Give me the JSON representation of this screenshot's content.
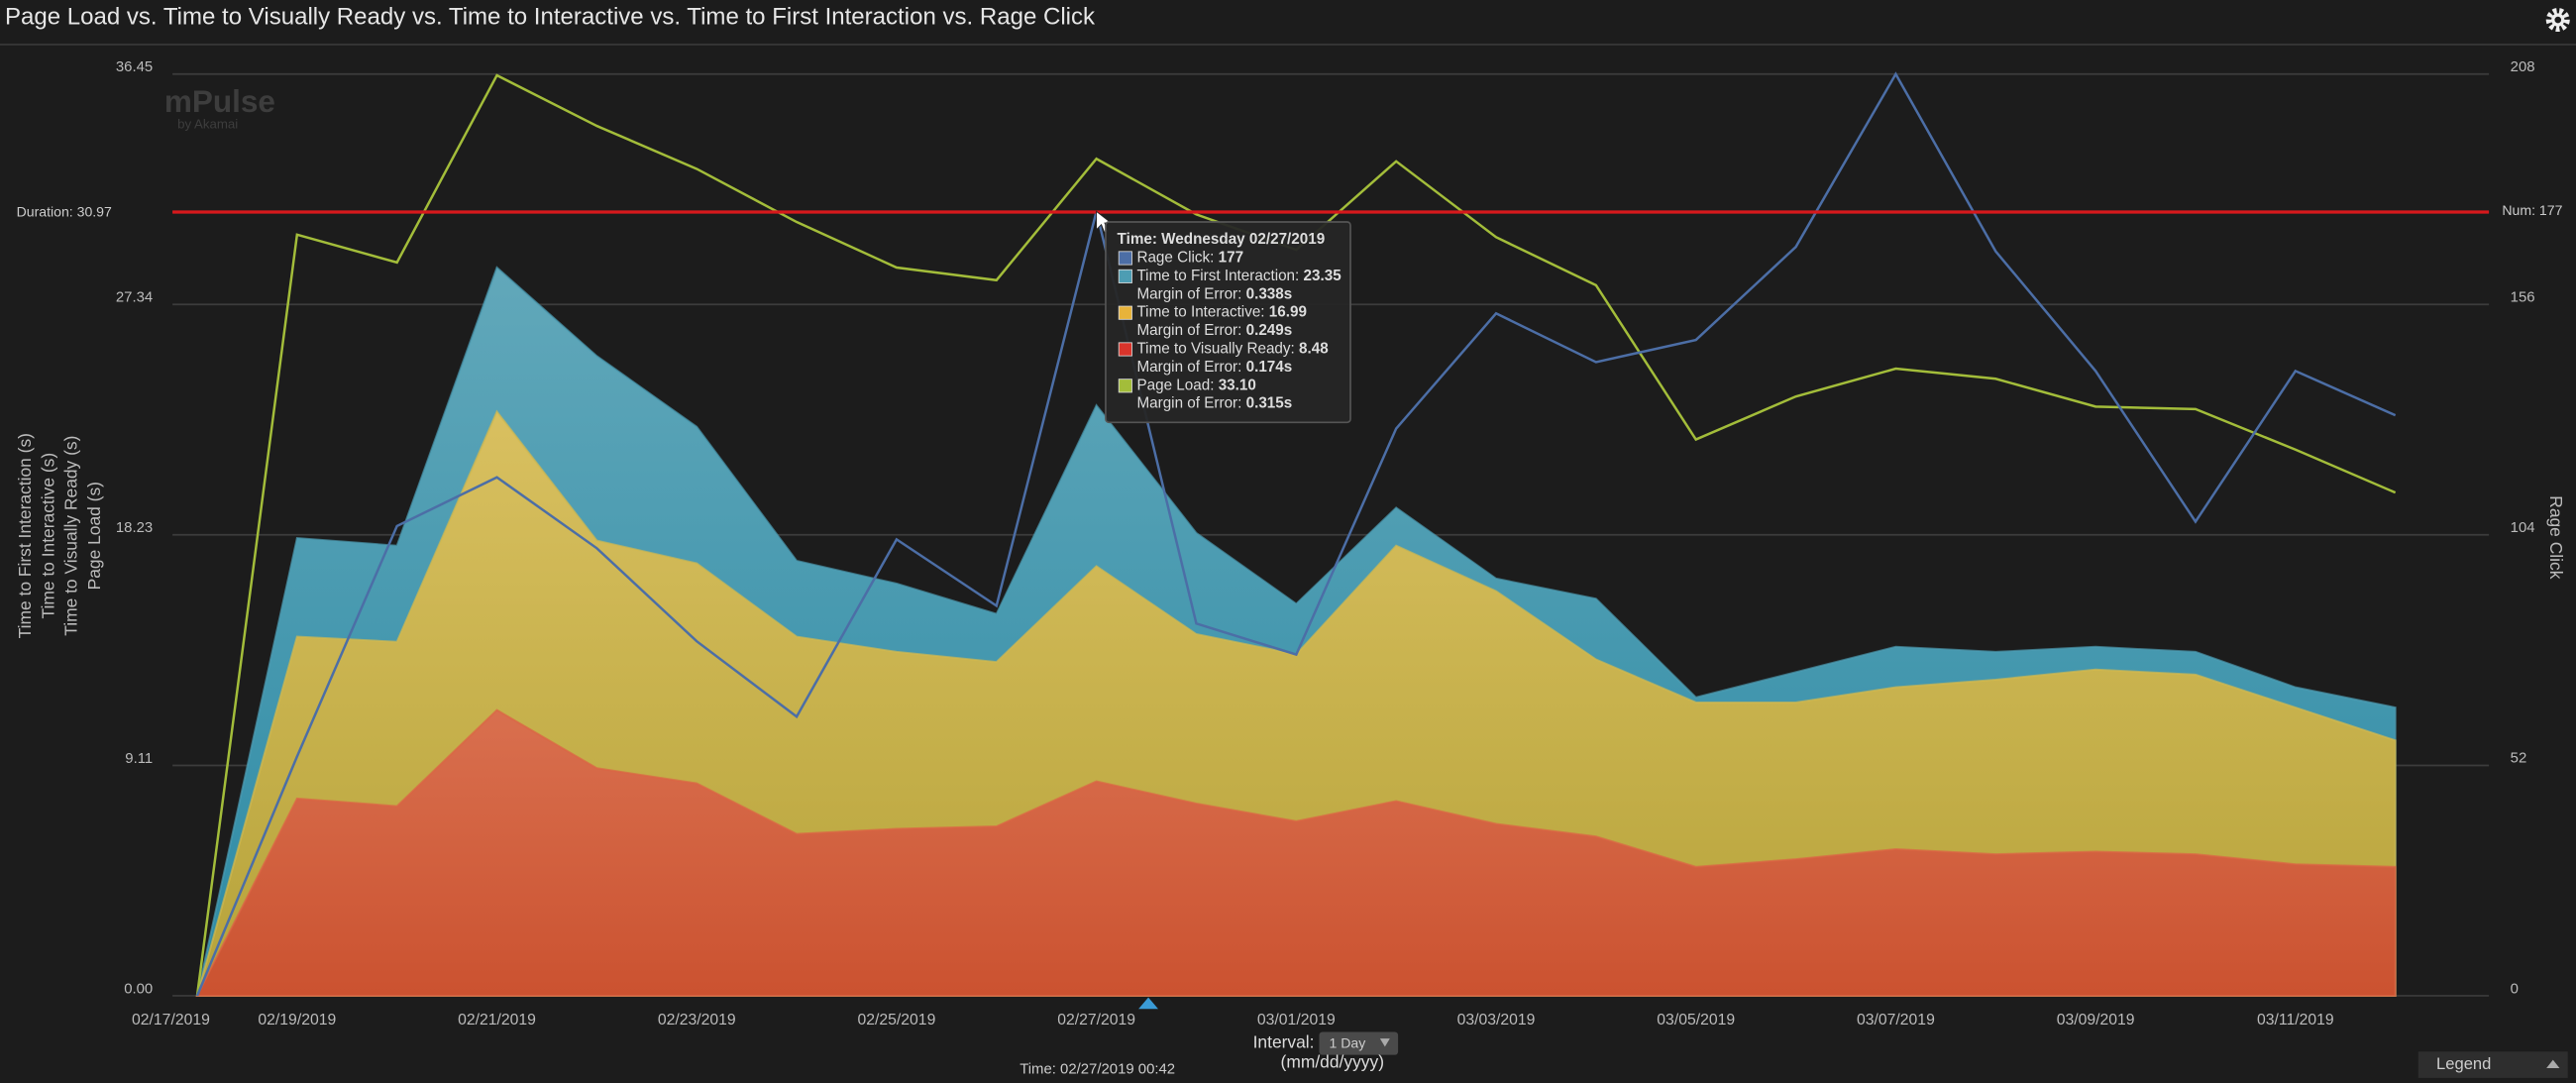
{
  "title": "Page Load vs. Time to Visually Ready vs. Time to Interactive vs. Time to First Interaction vs. Rage Click",
  "logo": {
    "name": "mPulse",
    "sub": "by Akamai"
  },
  "chart_data": {
    "type": "area",
    "x": [
      "02/18/2019",
      "02/19/2019",
      "02/20/2019",
      "02/21/2019",
      "02/22/2019",
      "02/23/2019",
      "02/24/2019",
      "02/25/2019",
      "02/26/2019",
      "02/27/2019",
      "02/28/2019",
      "03/01/2019",
      "03/02/2019",
      "03/03/2019",
      "03/04/2019",
      "03/05/2019",
      "03/06/2019",
      "03/07/2019",
      "03/08/2019",
      "03/09/2019",
      "03/10/2019",
      "03/11/2019",
      "03/12/2019"
    ],
    "xticks": [
      "02/17/2019",
      "02/19/2019",
      "02/21/2019",
      "02/23/2019",
      "02/25/2019",
      "02/27/2019",
      "03/01/2019",
      "03/03/2019",
      "03/05/2019",
      "03/07/2019",
      "03/09/2019",
      "03/11/2019"
    ],
    "ylim": [
      0,
      36.45
    ],
    "yticks": [
      {
        "value": 0,
        "label": "0.00"
      },
      {
        "value": 9.11,
        "label": "9.11"
      },
      {
        "value": 18.23,
        "label": "18.23"
      },
      {
        "value": 27.34,
        "label": "27.34"
      },
      {
        "value": 36.45,
        "label": "36.45"
      }
    ],
    "y2lim": [
      0,
      208
    ],
    "y2ticks": [
      0,
      52,
      104,
      156,
      208
    ],
    "ylabel": [
      "Time to First Interaction (s)",
      "Time to Interactive (s)",
      "Time to Visually Ready (s)",
      "Page Load (s)"
    ],
    "y2label": "Rage Click",
    "grid": true,
    "series": [
      {
        "name": "Time to First Interaction",
        "type": "area",
        "color": "#4d9db3",
        "values": [
          0,
          18.1,
          17.8,
          28.8,
          25.3,
          22.5,
          17.2,
          16.3,
          15.1,
          23.35,
          18.3,
          15.5,
          19.3,
          16.5,
          15.7,
          11.8,
          12.8,
          13.8,
          13.6,
          13.8,
          13.6,
          12.2,
          11.4
        ]
      },
      {
        "name": "Time to Interactive",
        "type": "area",
        "color": "#d3b94e",
        "values": [
          0,
          14.2,
          14.0,
          23.1,
          18.0,
          17.1,
          14.2,
          13.6,
          13.2,
          16.99,
          14.3,
          13.5,
          17.8,
          16.0,
          13.3,
          11.6,
          11.6,
          12.2,
          12.5,
          12.9,
          12.7,
          11.4,
          10.1
        ]
      },
      {
        "name": "Time to Visually Ready",
        "type": "area",
        "color": "#dc6444",
        "values": [
          0,
          7.8,
          7.5,
          11.3,
          9.0,
          8.4,
          6.4,
          6.6,
          6.7,
          8.48,
          7.6,
          6.9,
          7.7,
          6.8,
          6.3,
          5.1,
          5.4,
          5.8,
          5.6,
          5.7,
          5.6,
          5.2,
          5.1
        ]
      },
      {
        "name": "Page Load",
        "type": "line",
        "color": "#a3bd3a",
        "values": [
          0,
          30.1,
          29.0,
          36.4,
          34.4,
          32.7,
          30.6,
          28.8,
          28.3,
          33.1,
          30.9,
          29.5,
          33.0,
          30.0,
          28.1,
          22.0,
          23.7,
          24.8,
          24.4,
          23.3,
          23.2,
          21.6,
          19.9
        ]
      },
      {
        "name": "Rage Click",
        "type": "line",
        "axis": "y2",
        "color": "#4c6ea6",
        "values": [
          0,
          54,
          106,
          117,
          101,
          80,
          63,
          103,
          88,
          177,
          84,
          77,
          128,
          154,
          143,
          148,
          169,
          208,
          168,
          141,
          107,
          141,
          131
        ]
      }
    ],
    "thresholds": [
      {
        "value": 30.97,
        "label": "Duration: 30.97",
        "axis": "y",
        "color": "#d7191c"
      },
      {
        "value": 177,
        "label": "Num: 177",
        "axis": "y2",
        "color": "#d7191c"
      }
    ]
  },
  "tooltip": {
    "title": "Time: Wednesday 02/27/2019",
    "rows": [
      {
        "label": "Rage Click: ",
        "value": "177",
        "swatch": "#4c6ea6"
      },
      {
        "label": "Time to First Interaction: ",
        "value": "23.35",
        "swatch": "#4d9db3"
      },
      {
        "label": "Margin of Error: ",
        "value": "0.338s"
      },
      {
        "label": "Time to Interactive: ",
        "value": "16.99",
        "swatch": "#e8b33a"
      },
      {
        "label": "Margin of Error: ",
        "value": "0.249s"
      },
      {
        "label": "Time to Visually Ready: ",
        "value": "8.48",
        "swatch": "#d9342b"
      },
      {
        "label": "Margin of Error: ",
        "value": "0.174s"
      },
      {
        "label": "Page Load: ",
        "value": "33.10",
        "swatch": "#a3bd3a"
      },
      {
        "label": "Margin of Error: ",
        "value": "0.315s"
      }
    ]
  },
  "footer": {
    "time": "Time: 02/27/2019 00:42",
    "interval_label": "Interval:",
    "interval": "1 Day",
    "format": "(mm/dd/yyyy)",
    "legend": "Legend"
  }
}
